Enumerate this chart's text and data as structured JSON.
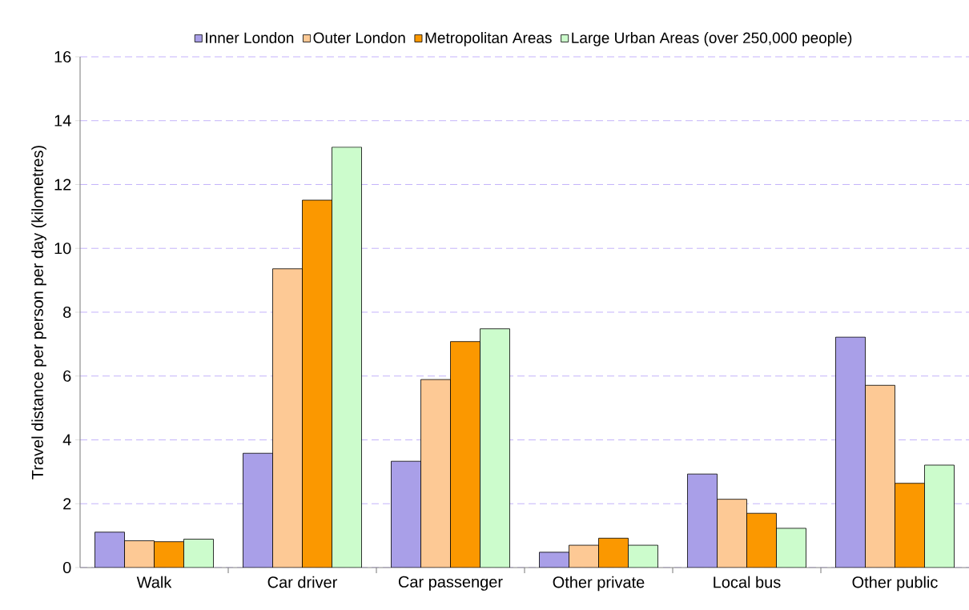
{
  "chart_data": {
    "type": "bar",
    "ylabel": "Travel distance per person per day (kilometres)",
    "categories": [
      "Walk",
      "Car driver",
      "Car passenger",
      "Other private",
      "Local bus",
      "Other public"
    ],
    "series": [
      {
        "name": "Inner London",
        "color": "#a99fe8",
        "values": [
          1.11,
          3.58,
          3.33,
          0.48,
          2.93,
          7.22
        ]
      },
      {
        "name": "Outer London",
        "color": "#fdc995",
        "values": [
          0.84,
          9.36,
          5.89,
          0.7,
          2.14,
          5.71
        ]
      },
      {
        "name": "Metropolitan Areas",
        "color": "#fb9800",
        "values": [
          0.81,
          11.51,
          7.08,
          0.92,
          1.7,
          2.64
        ]
      },
      {
        "name": "Large Urban Areas (over 250,000 people)",
        "color": "#ccfccc",
        "values": [
          0.89,
          13.17,
          7.48,
          0.7,
          1.23,
          3.21
        ]
      }
    ],
    "ylim": [
      0,
      16
    ],
    "yticks": [
      0,
      2,
      4,
      6,
      8,
      10,
      12,
      14,
      16
    ],
    "grid": "y",
    "legend": "top"
  }
}
